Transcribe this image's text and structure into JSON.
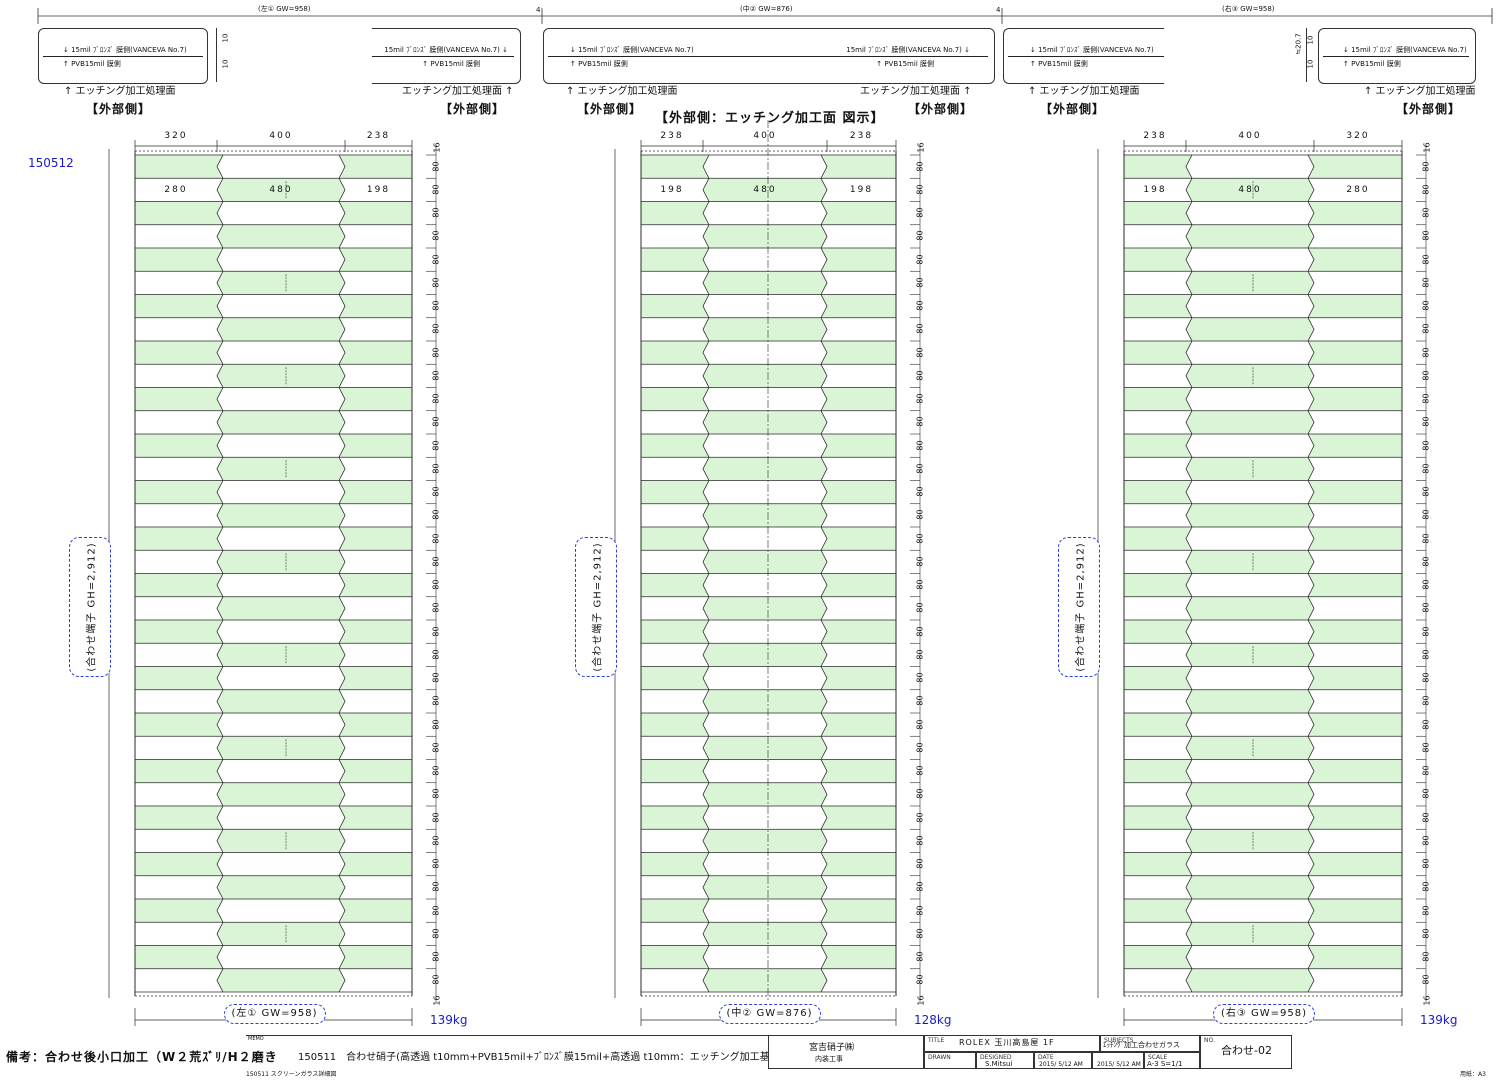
{
  "sheet_id": "150512",
  "center_title": "【外部側：エッチング加工面 図示】",
  "colors": {
    "green": "#d9f5d6",
    "line": "#2a2a2a",
    "blue": "#1a1acc"
  },
  "panels": [
    {
      "key": "left",
      "top_dim": "(左① GW=958)",
      "legend_top": "↓ 15mil ﾌﾞﾛﾝｽﾞ 膜側(VANCEVA No.7)",
      "legend_bottom": "↑ PVB15mil 膜側",
      "legend_top_r": "15mil ﾌﾞﾛﾝｽﾞ 膜側(VANCEVA No.7) ↓",
      "legend_bottom_r": "↑ PVB15mil 膜側",
      "etch_label_l": "↑ エッチング加工処理面",
      "etch_label_r": "エッチング加工処理面 ↑",
      "side_label_l": "【外部側】",
      "side_label_r": "【外部側】",
      "top_widths": [
        "320",
        "400",
        "238"
      ],
      "row_widths": [
        "280",
        "480",
        "198"
      ],
      "cloud_text": "(合わせ端子 GH=2,912)",
      "bottom_dim": "(左① GW=958)",
      "weight": "139kg"
    },
    {
      "key": "center",
      "top_dim": "(中② GW=876)",
      "legend_top": "↓ 15mil ﾌﾞﾛﾝｽﾞ 膜側(VANCEVA No.7)",
      "legend_bottom": "↑ PVB15mil 膜側",
      "legend_top_r": "15mil ﾌﾞﾛﾝｽﾞ 膜側(VANCEVA No.7) ↓",
      "legend_bottom_r": "↑ PVB15mil 膜側",
      "etch_label_l": "↑ エッチング加工処理面",
      "etch_label_r": "エッチング加工処理面 ↑",
      "side_label_l": "【外部側】",
      "side_label_r": "【外部側】",
      "top_widths": [
        "238",
        "400",
        "238"
      ],
      "row_widths": [
        "198",
        "480",
        "198"
      ],
      "cloud_text": "(合わせ端子 GH=2,912)",
      "bottom_dim": "(中② GW=876)",
      "weight": "128kg"
    },
    {
      "key": "right",
      "top_dim": "(右③ GW=958)",
      "legend_top": "↓ 15mil ﾌﾞﾛﾝｽﾞ 膜側(VANCEVA No.7)",
      "legend_bottom": "↑ PVB15mil 膜側",
      "legend_top_r": "↓ 15mil ﾌﾞﾛﾝｽﾞ 膜側(VANCEVA No.7)",
      "legend_bottom_r": "↑ PVB15mil 膜側",
      "etch_label_l": "↑ エッチング加工処理面",
      "etch_label_r": "↑ エッチング加工処理面",
      "side_label_l": "【外部側】",
      "side_label_r": "【外部側】",
      "top_widths": [
        "238",
        "400",
        "320"
      ],
      "row_widths": [
        "198",
        "480",
        "280"
      ],
      "cloud_text": "(合わせ端子 GH=2,912)",
      "bottom_dim": "(右③ GW=958)",
      "weight": "139kg"
    }
  ],
  "gap_label": "4",
  "thickness_labels": [
    "10",
    "10"
  ],
  "thickness_total": "≒20.7",
  "row_height_label": "80",
  "end_label": "16",
  "row_count": 36,
  "footer": {
    "memo_label": "MEMO",
    "remarks": "備考：合わせ後小口加工（W２荒ｽﾞﾘ/H２磨き",
    "spec": "150511　合わせ硝子(高透過 t10mm+PVB15mil+ﾌﾞﾛﾝｽﾞ膜15mil+高透過 t10mm：エッチング加工基本詳細図",
    "ref": "150511 スクリーンガラス詳細図",
    "company": "宮吉硝子㈱",
    "dept": "内装工事",
    "title_label": "TITLE",
    "title": "ROLEX 玉川高島屋 1F",
    "subjects_label": "SUBJECTS",
    "subject": "ｴｯﾁﾝｸﾞ加工合わせガラス",
    "no_label": "NO.",
    "drawing_no": "合わせ-02",
    "drawn_label": "DRAWN",
    "designed_label": "DESIGNED",
    "designer": "S.Mitsui",
    "date_label": "DATE",
    "date1": "2015/ 5/12 AM",
    "date2": "2015/ 5/12 AM",
    "scale_label": "SCALE",
    "scale": "A-3 S=1/1",
    "paper": "用紙：A3"
  }
}
